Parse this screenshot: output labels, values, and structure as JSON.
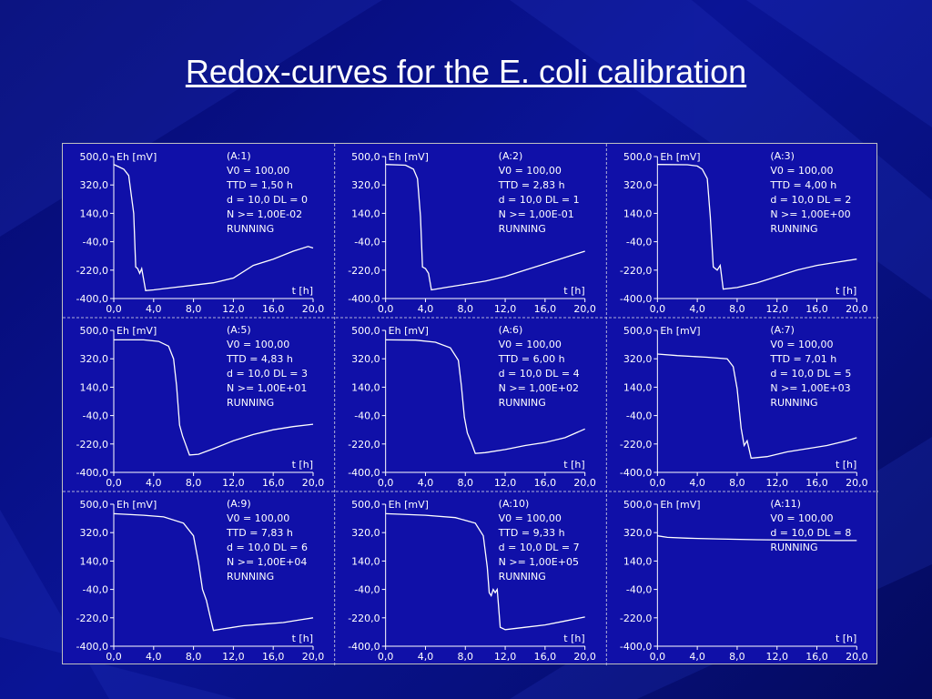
{
  "page": {
    "title": "Redox-curves for the E. coli calibration"
  },
  "colors": {
    "panel_bg": "#1010a8",
    "line": "#ffffff",
    "slide_bg": "#0a1496"
  },
  "chart_data": [
    {
      "type": "line",
      "id": "A:1",
      "header": "(A:1)",
      "info": [
        "V0 = 100,00",
        "TTD = 1,50 h",
        "d = 10,0  DL = 0",
        "N >= 1,00E-02",
        "RUNNING"
      ],
      "ylabel": "Eh [mV]",
      "xlabel": "t [h]",
      "ylim": [
        -400,
        500
      ],
      "xlim": [
        0,
        20
      ],
      "yticks": [
        "500,0",
        "320,0",
        "140,0",
        "-40,0",
        "-220,0",
        "-400,0"
      ],
      "xticks": [
        "0,0",
        "4,0",
        "8,0",
        "12,0",
        "16,0",
        "20,0"
      ],
      "points": [
        [
          0,
          450
        ],
        [
          1,
          420
        ],
        [
          1.5,
          380
        ],
        [
          2,
          140
        ],
        [
          2.2,
          -200
        ],
        [
          2.4,
          -210
        ],
        [
          2.6,
          -240
        ],
        [
          2.8,
          -210
        ],
        [
          3.2,
          -350
        ],
        [
          4,
          -345
        ],
        [
          6,
          -330
        ],
        [
          8,
          -315
        ],
        [
          10,
          -300
        ],
        [
          12,
          -270
        ],
        [
          14,
          -190
        ],
        [
          16,
          -150
        ],
        [
          18,
          -100
        ],
        [
          19.5,
          -70
        ],
        [
          20,
          -80
        ]
      ]
    },
    {
      "type": "line",
      "id": "A:2",
      "header": "(A:2)",
      "info": [
        "V0 = 100,00",
        "TTD = 2,83 h",
        "d = 10,0  DL = 1",
        "N >= 1,00E-01",
        "RUNNING"
      ],
      "ylabel": "Eh [mV]",
      "xlabel": "t [h]",
      "ylim": [
        -400,
        500
      ],
      "xlim": [
        0,
        20
      ],
      "yticks": [
        "500,0",
        "320,0",
        "140,0",
        "-40,0",
        "-220,0",
        "-400,0"
      ],
      "xticks": [
        "0,0",
        "4,0",
        "8,0",
        "12,0",
        "16,0",
        "20,0"
      ],
      "points": [
        [
          0,
          450
        ],
        [
          2,
          445
        ],
        [
          2.8,
          420
        ],
        [
          3.2,
          360
        ],
        [
          3.5,
          120
        ],
        [
          3.7,
          -200
        ],
        [
          4,
          -210
        ],
        [
          4.3,
          -240
        ],
        [
          4.6,
          -345
        ],
        [
          6,
          -330
        ],
        [
          8,
          -310
        ],
        [
          10,
          -290
        ],
        [
          12,
          -260
        ],
        [
          14,
          -220
        ],
        [
          16,
          -180
        ],
        [
          18,
          -140
        ],
        [
          20,
          -100
        ]
      ]
    },
    {
      "type": "line",
      "id": "A:3",
      "header": "(A:3)",
      "info": [
        "V0 = 100,00",
        "TTD = 4,00 h",
        "d = 10,0  DL = 2",
        "N >= 1,00E+00",
        "RUNNING"
      ],
      "ylabel": "Eh [mV]",
      "xlabel": "t [h]",
      "ylim": [
        -400,
        500
      ],
      "xlim": [
        0,
        20
      ],
      "yticks": [
        "500,0",
        "320,0",
        "140,0",
        "-40,0",
        "-220,0",
        "-400,0"
      ],
      "xticks": [
        "0,0",
        "4,0",
        "8,0",
        "12,0",
        "16,0",
        "20,0"
      ],
      "points": [
        [
          0,
          450
        ],
        [
          3,
          448
        ],
        [
          4,
          440
        ],
        [
          4.5,
          420
        ],
        [
          5,
          360
        ],
        [
          5.3,
          120
        ],
        [
          5.6,
          -200
        ],
        [
          6,
          -220
        ],
        [
          6.3,
          -190
        ],
        [
          6.6,
          -340
        ],
        [
          8,
          -330
        ],
        [
          10,
          -300
        ],
        [
          12,
          -260
        ],
        [
          14,
          -220
        ],
        [
          16,
          -190
        ],
        [
          18,
          -170
        ],
        [
          20,
          -150
        ]
      ]
    },
    {
      "type": "line",
      "id": "A:5",
      "header": "(A:5)",
      "info": [
        "V0 = 100,00",
        "TTD = 4,83 h",
        "d = 10,0  DL = 3",
        "N >= 1,00E+01",
        "RUNNING"
      ],
      "ylabel": "Eh [mV]",
      "xlabel": "t [h]",
      "ylim": [
        -400,
        500
      ],
      "xlim": [
        0,
        20
      ],
      "yticks": [
        "500,0",
        "320,0",
        "140,0",
        "-40,0",
        "-220,0",
        "-400,0"
      ],
      "xticks": [
        "0,0",
        "4,0",
        "8,0",
        "12,0",
        "16,0",
        "20,0"
      ],
      "points": [
        [
          0,
          440
        ],
        [
          3,
          440
        ],
        [
          4.5,
          430
        ],
        [
          5.5,
          400
        ],
        [
          6,
          320
        ],
        [
          6.3,
          150
        ],
        [
          6.6,
          -100
        ],
        [
          6.9,
          -170
        ],
        [
          7.2,
          -220
        ],
        [
          7.6,
          -290
        ],
        [
          8.5,
          -285
        ],
        [
          10,
          -250
        ],
        [
          12,
          -200
        ],
        [
          14,
          -160
        ],
        [
          16,
          -130
        ],
        [
          18,
          -110
        ],
        [
          20,
          -95
        ]
      ]
    },
    {
      "type": "line",
      "id": "A:6",
      "header": "(A:6)",
      "info": [
        "V0 = 100,00",
        "TTD = 6,00 h",
        "d = 10,0  DL = 4",
        "N >= 1,00E+02",
        "RUNNING"
      ],
      "ylabel": "Eh [mV]",
      "xlabel": "t [h]",
      "ylim": [
        -400,
        500
      ],
      "xlim": [
        0,
        20
      ],
      "yticks": [
        "500,0",
        "320,0",
        "140,0",
        "-40,0",
        "-220,0",
        "-400,0"
      ],
      "xticks": [
        "0,0",
        "4,0",
        "8,0",
        "12,0",
        "16,0",
        "20,0"
      ],
      "points": [
        [
          0,
          440
        ],
        [
          3,
          438
        ],
        [
          5,
          425
        ],
        [
          6.5,
          390
        ],
        [
          7.3,
          310
        ],
        [
          7.6,
          150
        ],
        [
          7.9,
          -50
        ],
        [
          8.2,
          -150
        ],
        [
          8.6,
          -210
        ],
        [
          9,
          -280
        ],
        [
          10,
          -275
        ],
        [
          12,
          -255
        ],
        [
          14,
          -230
        ],
        [
          16,
          -210
        ],
        [
          18,
          -180
        ],
        [
          20,
          -125
        ]
      ]
    },
    {
      "type": "line",
      "id": "A:7",
      "header": "(A:7)",
      "info": [
        "V0 = 100,00",
        "TTD = 7,01 h",
        "d = 10,0  DL = 5",
        "N >= 1,00E+03",
        "RUNNING"
      ],
      "ylabel": "Eh [mV]",
      "xlabel": "t [h]",
      "ylim": [
        -400,
        500
      ],
      "xlim": [
        0,
        20
      ],
      "yticks": [
        "500,0",
        "320,0",
        "140,0",
        "-40,0",
        "-220,0",
        "-400,0"
      ],
      "xticks": [
        "0,0",
        "4,0",
        "8,0",
        "12,0",
        "16,0",
        "20,0"
      ],
      "points": [
        [
          0,
          350
        ],
        [
          2,
          340
        ],
        [
          5,
          330
        ],
        [
          7,
          320
        ],
        [
          7.6,
          270
        ],
        [
          8,
          130
        ],
        [
          8.4,
          -120
        ],
        [
          8.7,
          -230
        ],
        [
          9,
          -200
        ],
        [
          9.4,
          -310
        ],
        [
          11,
          -300
        ],
        [
          13,
          -270
        ],
        [
          15,
          -250
        ],
        [
          17,
          -230
        ],
        [
          19,
          -200
        ],
        [
          20,
          -180
        ]
      ]
    },
    {
      "type": "line",
      "id": "A:9",
      "header": "(A:9)",
      "info": [
        "V0 = 100,00",
        "TTD = 7,83 h",
        "d = 10,0  DL = 6",
        "N >= 1,00E+04",
        "RUNNING"
      ],
      "ylabel": "Eh [mV]",
      "xlabel": "t [h]",
      "ylim": [
        -400,
        500
      ],
      "xlim": [
        0,
        20
      ],
      "yticks": [
        "500,0",
        "320,0",
        "140,0",
        "-40,0",
        "-220,0",
        "-400,0"
      ],
      "xticks": [
        "0,0",
        "4,0",
        "8,0",
        "12,0",
        "16,0",
        "20,0"
      ],
      "points": [
        [
          0,
          440
        ],
        [
          3,
          430
        ],
        [
          5,
          420
        ],
        [
          7,
          380
        ],
        [
          8,
          300
        ],
        [
          8.5,
          130
        ],
        [
          8.9,
          -40
        ],
        [
          9.3,
          -110
        ],
        [
          9.7,
          -220
        ],
        [
          10,
          -300
        ],
        [
          11,
          -290
        ],
        [
          13,
          -270
        ],
        [
          15,
          -260
        ],
        [
          17,
          -250
        ],
        [
          19,
          -230
        ],
        [
          20,
          -220
        ]
      ]
    },
    {
      "type": "line",
      "id": "A:10",
      "header": "(A:10)",
      "info": [
        "V0 = 100,00",
        "TTD = 9,33 h",
        "d = 10,0  DL = 7",
        "N >= 1,00E+05",
        "RUNNING"
      ],
      "ylabel": "Eh [mV]",
      "xlabel": "t [h]",
      "ylim": [
        -400,
        500
      ],
      "xlim": [
        0,
        20
      ],
      "yticks": [
        "500,0",
        "320,0",
        "140,0",
        "-40,0",
        "-220,0",
        "-400,0"
      ],
      "xticks": [
        "0,0",
        "4,0",
        "8,0",
        "12,0",
        "16,0",
        "20,0"
      ],
      "points": [
        [
          0,
          440
        ],
        [
          4,
          430
        ],
        [
          7,
          415
        ],
        [
          9,
          380
        ],
        [
          9.8,
          300
        ],
        [
          10.2,
          100
        ],
        [
          10.4,
          -60
        ],
        [
          10.6,
          -80
        ],
        [
          10.8,
          -40
        ],
        [
          11,
          -60
        ],
        [
          11.2,
          -40
        ],
        [
          11.5,
          -280
        ],
        [
          12,
          -295
        ],
        [
          14,
          -280
        ],
        [
          16,
          -265
        ],
        [
          18,
          -240
        ],
        [
          20,
          -215
        ]
      ]
    },
    {
      "type": "line",
      "id": "A:11",
      "header": "(A:11)",
      "info": [
        "V0 = 100,00",
        "d = 10,0  DL = 8",
        "RUNNING"
      ],
      "ylabel": "Eh [mV]",
      "xlabel": "t [h]",
      "ylim": [
        -400,
        500
      ],
      "xlim": [
        0,
        20
      ],
      "yticks": [
        "500,0",
        "320,0",
        "140,0",
        "-40,0",
        "-220,0",
        "-400,0"
      ],
      "xticks": [
        "0,0",
        "4,0",
        "8,0",
        "12,0",
        "16,0",
        "20,0"
      ],
      "points": [
        [
          0,
          300
        ],
        [
          1,
          290
        ],
        [
          3,
          285
        ],
        [
          6,
          280
        ],
        [
          10,
          275
        ],
        [
          14,
          272
        ],
        [
          18,
          270
        ],
        [
          20,
          270
        ]
      ]
    }
  ]
}
